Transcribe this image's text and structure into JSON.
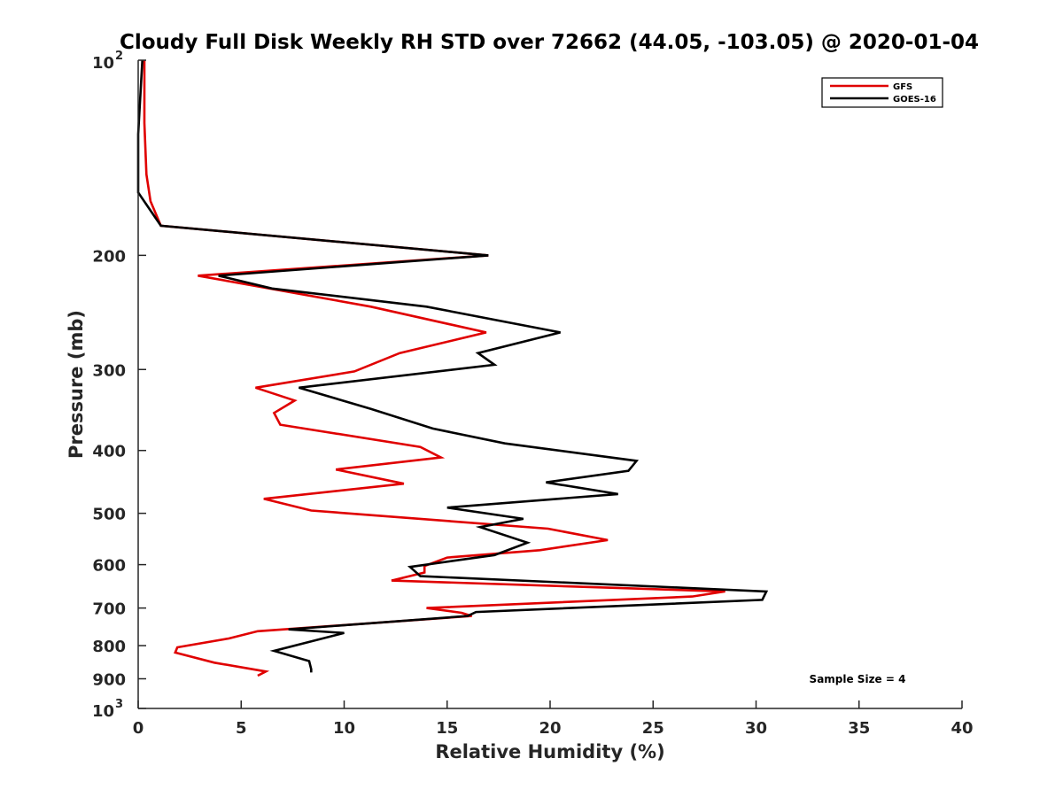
{
  "chart_data": {
    "type": "line",
    "title": "Cloudy Full Disk Weekly RH STD over 72662 (44.05, -103.05) @ 2020-01-04",
    "xlabel": "Relative Humidity (%)",
    "ylabel": "Pressure (mb)",
    "xlim": [
      0,
      40
    ],
    "ylim": [
      100,
      1000
    ],
    "y_scale": "log",
    "y_reversed": true,
    "grid": false,
    "legend_position": "top-right",
    "x_ticks": [
      {
        "value": 0,
        "label": "0"
      },
      {
        "value": 5,
        "label": "5"
      },
      {
        "value": 10,
        "label": "10"
      },
      {
        "value": 15,
        "label": "15"
      },
      {
        "value": 20,
        "label": "20"
      },
      {
        "value": 25,
        "label": "25"
      },
      {
        "value": 30,
        "label": "30"
      },
      {
        "value": 35,
        "label": "35"
      },
      {
        "value": 40,
        "label": "40"
      }
    ],
    "y_ticks": [
      {
        "value": 100,
        "base": "10",
        "exp": "2"
      },
      {
        "value": 200,
        "label": "200"
      },
      {
        "value": 300,
        "label": "300"
      },
      {
        "value": 400,
        "label": "400"
      },
      {
        "value": 500,
        "label": "500"
      },
      {
        "value": 600,
        "label": "600"
      },
      {
        "value": 700,
        "label": "700"
      },
      {
        "value": 800,
        "label": "800"
      },
      {
        "value": 900,
        "label": "900"
      },
      {
        "value": 1000,
        "base": "10",
        "exp": "3"
      }
    ],
    "series": [
      {
        "name": "GFS",
        "color": "#e00000",
        "points": [
          [
            0.3,
            100
          ],
          [
            0.3,
            125
          ],
          [
            0.4,
            150
          ],
          [
            0.6,
            165
          ],
          [
            1.1,
            180
          ],
          [
            17.0,
            200
          ],
          [
            2.9,
            215
          ],
          [
            11.3,
            240
          ],
          [
            16.9,
            263
          ],
          [
            12.7,
            283
          ],
          [
            10.5,
            302
          ],
          [
            5.7,
            320
          ],
          [
            7.6,
            335
          ],
          [
            6.6,
            350
          ],
          [
            6.9,
            365
          ],
          [
            13.7,
            395
          ],
          [
            14.7,
            410
          ],
          [
            9.6,
            428
          ],
          [
            12.9,
            450
          ],
          [
            6.1,
            475
          ],
          [
            8.4,
            495
          ],
          [
            19.9,
            528
          ],
          [
            22.8,
            550
          ],
          [
            19.5,
            570
          ],
          [
            15.0,
            585
          ],
          [
            13.9,
            603
          ],
          [
            13.9,
            617
          ],
          [
            12.3,
            635
          ],
          [
            28.5,
            660
          ],
          [
            26.9,
            672
          ],
          [
            14.0,
            700
          ],
          [
            15.7,
            712
          ],
          [
            16.2,
            720
          ],
          [
            5.8,
            760
          ],
          [
            4.4,
            780
          ],
          [
            1.9,
            805
          ],
          [
            1.8,
            820
          ],
          [
            3.7,
            850
          ],
          [
            6.2,
            877
          ],
          [
            5.8,
            890
          ]
        ]
      },
      {
        "name": "GOES-16",
        "color": "#000000",
        "points": [
          [
            0.2,
            100
          ],
          [
            0.0,
            130
          ],
          [
            0.0,
            150
          ],
          [
            0.0,
            160
          ],
          [
            1.1,
            180
          ],
          [
            17.0,
            200
          ],
          [
            3.9,
            215
          ],
          [
            6.5,
            225
          ],
          [
            14.0,
            240
          ],
          [
            20.5,
            263
          ],
          [
            16.5,
            283
          ],
          [
            17.3,
            295
          ],
          [
            7.8,
            320
          ],
          [
            11.3,
            345
          ],
          [
            14.3,
            370
          ],
          [
            17.8,
            390
          ],
          [
            24.2,
            415
          ],
          [
            23.8,
            430
          ],
          [
            19.8,
            448
          ],
          [
            23.3,
            467
          ],
          [
            15.0,
            490
          ],
          [
            18.7,
            510
          ],
          [
            16.6,
            525
          ],
          [
            18.9,
            555
          ],
          [
            17.3,
            580
          ],
          [
            13.2,
            605
          ],
          [
            13.7,
            625
          ],
          [
            30.5,
            660
          ],
          [
            30.3,
            680
          ],
          [
            16.4,
            710
          ],
          [
            16.0,
            720
          ],
          [
            7.3,
            755
          ],
          [
            10.0,
            765
          ],
          [
            6.6,
            815
          ],
          [
            8.3,
            845
          ],
          [
            8.4,
            870
          ],
          [
            8.4,
            880
          ]
        ]
      }
    ],
    "annotations": [
      {
        "text": "Sample Size = 4"
      }
    ]
  }
}
